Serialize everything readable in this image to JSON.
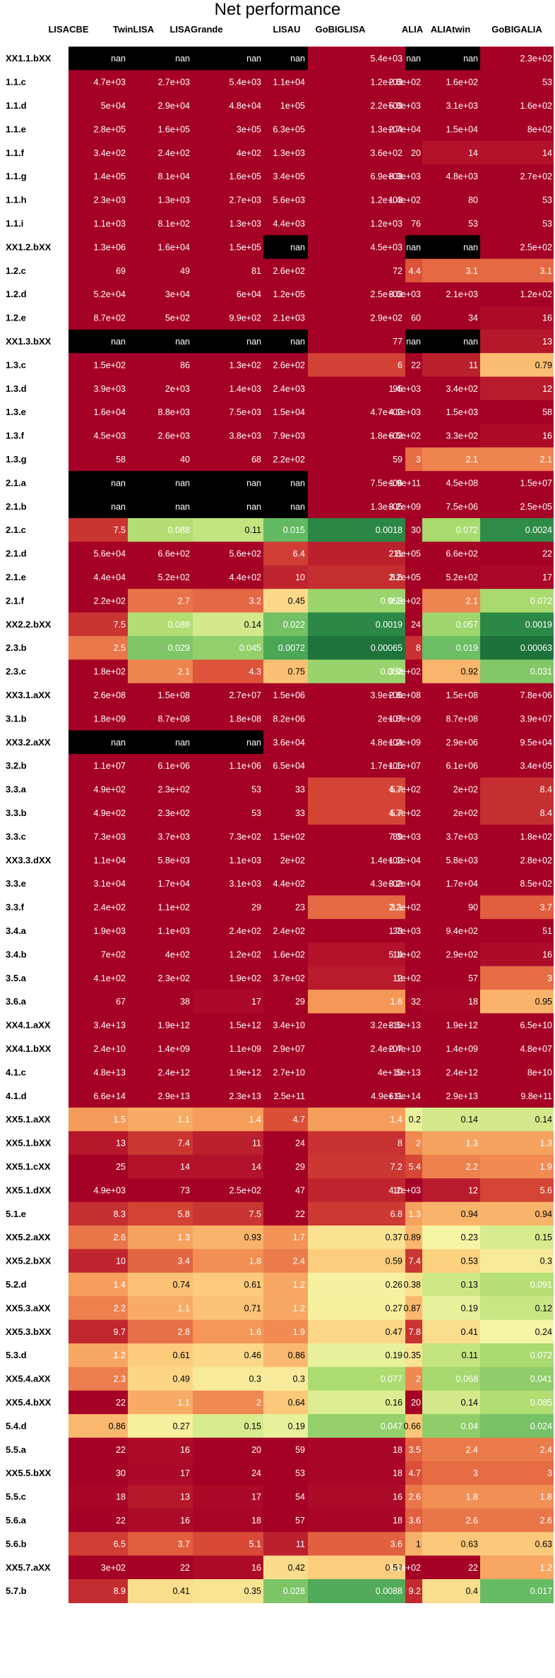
{
  "chart_data": {
    "type": "heatmap",
    "title": "Net performance",
    "columns": [
      "LISACBE",
      "TwinLISA",
      "LISAGrande",
      "LISAU",
      "GoBIGLISA",
      "ALIA",
      "ALIAtwin",
      "GoBIGALIA"
    ],
    "colors": {
      "nan": "#000000",
      "high": "#a50026",
      "low": "#1a6e38",
      "text_light": "#ffffff",
      "text_dark": "#000000"
    },
    "scale": {
      "log": true,
      "min": 0.0005,
      "max": 20,
      "midpoint": 1
    },
    "rows": [
      {
        "label": "XX1.1.bXX",
        "values": [
          "nan",
          "nan",
          "nan",
          "nan",
          "5.4e+03",
          "nan",
          "nan",
          "2.3e+02"
        ]
      },
      {
        "label": "1.1.c",
        "values": [
          "4.7e+03",
          "2.7e+03",
          "5.4e+03",
          "1.1e+04",
          "1.2e+03",
          "2.8e+02",
          "1.6e+02",
          "53"
        ]
      },
      {
        "label": "1.1.d",
        "values": [
          "5e+04",
          "2.9e+04",
          "4.8e+04",
          "1e+05",
          "2.2e+03",
          "5.8e+03",
          "3.1e+03",
          "1.6e+02"
        ]
      },
      {
        "label": "1.1.e",
        "values": [
          "2.8e+05",
          "1.6e+05",
          "3e+05",
          "6.3e+05",
          "1.3e+04",
          "2.7e+04",
          "1.5e+04",
          "8e+02"
        ]
      },
      {
        "label": "1.1.f",
        "values": [
          "3.4e+02",
          "2.4e+02",
          "4e+02",
          "1.3e+03",
          "3.6e+02",
          "20",
          "14",
          "14"
        ]
      },
      {
        "label": "1.1.g",
        "values": [
          "1.4e+05",
          "8.1e+04",
          "1.6e+05",
          "3.4e+05",
          "6.9e+03",
          "8.3e+03",
          "4.8e+03",
          "2.7e+02"
        ]
      },
      {
        "label": "1.1.h",
        "values": [
          "2.3e+03",
          "1.3e+03",
          "2.7e+03",
          "5.6e+03",
          "1.2e+03",
          "1.4e+02",
          "80",
          "53"
        ]
      },
      {
        "label": "1.1.i",
        "values": [
          "1.1e+03",
          "8.1e+02",
          "1.3e+03",
          "4.4e+03",
          "1.2e+03",
          "76",
          "53",
          "53"
        ]
      },
      {
        "label": "XX1.2.bXX",
        "values": [
          "1.3e+06",
          "1.6e+04",
          "1.5e+05",
          "nan",
          "4.5e+03",
          "nan",
          "nan",
          "2.5e+02"
        ]
      },
      {
        "label": "1.2.c",
        "values": [
          "69",
          "49",
          "81",
          "2.6e+02",
          "72",
          "4.4",
          "3.1",
          "3.1"
        ]
      },
      {
        "label": "1.2.d",
        "values": [
          "5.2e+04",
          "3e+04",
          "6e+04",
          "1.2e+05",
          "2.5e+03",
          "3.6e+03",
          "2.1e+03",
          "1.2e+02"
        ]
      },
      {
        "label": "1.2.e",
        "values": [
          "8.7e+02",
          "5e+02",
          "9.9e+02",
          "2.1e+03",
          "2.9e+02",
          "60",
          "34",
          "16"
        ]
      },
      {
        "label": "XX1.3.bXX",
        "values": [
          "nan",
          "nan",
          "nan",
          "nan",
          "77",
          "nan",
          "nan",
          "13"
        ]
      },
      {
        "label": "1.3.c",
        "values": [
          "1.5e+02",
          "86",
          "1.3e+02",
          "2.6e+02",
          "6",
          "22",
          "11",
          "0.79"
        ]
      },
      {
        "label": "1.3.d",
        "values": [
          "3.9e+03",
          "2e+03",
          "1.4e+03",
          "2.4e+03",
          "95",
          "1.4e+03",
          "3.4e+02",
          "12"
        ]
      },
      {
        "label": "1.3.e",
        "values": [
          "1.6e+04",
          "8.8e+03",
          "7.5e+03",
          "1.5e+04",
          "4.7e+02",
          "4.1e+03",
          "1.5e+03",
          "58"
        ]
      },
      {
        "label": "1.3.f",
        "values": [
          "4.5e+03",
          "2.6e+03",
          "3.8e+03",
          "7.9e+03",
          "1.8e+02",
          "6.5e+02",
          "3.3e+02",
          "16"
        ]
      },
      {
        "label": "1.3.g",
        "values": [
          "58",
          "40",
          "68",
          "2.2e+02",
          "59",
          "3",
          "2.1",
          "2.1"
        ]
      },
      {
        "label": "2.1.a",
        "values": [
          "nan",
          "nan",
          "nan",
          "nan",
          "7.5e+06",
          "1.9e+11",
          "4.5e+08",
          "1.5e+07"
        ]
      },
      {
        "label": "2.1.b",
        "values": [
          "nan",
          "nan",
          "nan",
          "nan",
          "1.3e+05",
          "3.2e+09",
          "7.5e+06",
          "2.5e+05"
        ]
      },
      {
        "label": "2.1.c",
        "values": [
          "7.5",
          "0.088",
          "0.11",
          "0.015",
          "0.0018",
          "30",
          "0.072",
          "0.0024"
        ]
      },
      {
        "label": "2.1.d",
        "values": [
          "5.6e+04",
          "6.6e+02",
          "5.6e+02",
          "6.4",
          "11",
          "2.8e+05",
          "6.6e+02",
          "22"
        ]
      },
      {
        "label": "2.1.e",
        "values": [
          "4.4e+04",
          "5.2e+02",
          "4.4e+02",
          "10",
          "8.6",
          "2.2e+05",
          "5.2e+02",
          "17"
        ]
      },
      {
        "label": "2.1.f",
        "values": [
          "2.2e+02",
          "2.7",
          "3.2",
          "0.45",
          "0.053",
          "9.1e+02",
          "2.1",
          "0.072"
        ]
      },
      {
        "label": "XX2.2.bXX",
        "values": [
          "7.5",
          "0.088",
          "0.14",
          "0.022",
          "0.0019",
          "24",
          "0.057",
          "0.0019"
        ]
      },
      {
        "label": "2.3.b",
        "values": [
          "2.5",
          "0.029",
          "0.045",
          "0.0072",
          "0.00065",
          "8",
          "0.019",
          "0.00063"
        ]
      },
      {
        "label": "2.3.c",
        "values": [
          "1.8e+02",
          "2.1",
          "4.3",
          "0.75",
          "0.052",
          "3.9e+02",
          "0.92",
          "0.031"
        ]
      },
      {
        "label": "XX3.1.aXX",
        "values": [
          "2.6e+08",
          "1.5e+08",
          "2.7e+07",
          "1.5e+06",
          "3.9e+06",
          "2.8e+08",
          "1.5e+08",
          "7.8e+06"
        ]
      },
      {
        "label": "3.1.b",
        "values": [
          "1.8e+09",
          "8.7e+08",
          "1.8e+08",
          "8.2e+06",
          "2e+07",
          "1.8e+09",
          "8.7e+08",
          "3.9e+07"
        ]
      },
      {
        "label": "XX3.2.aXX",
        "values": [
          "nan",
          "nan",
          "nan",
          "3.6e+04",
          "4.8e+04",
          "1.2e+09",
          "2.9e+06",
          "9.5e+04"
        ]
      },
      {
        "label": "3.2.b",
        "values": [
          "1.1e+07",
          "6.1e+06",
          "1.1e+06",
          "6.5e+04",
          "1.7e+05",
          "1.1e+07",
          "6.1e+06",
          "3.4e+05"
        ]
      },
      {
        "label": "3.3.a",
        "values": [
          "4.9e+02",
          "2.3e+02",
          "53",
          "33",
          "5.7",
          "4.7e+02",
          "2e+02",
          "8.4"
        ]
      },
      {
        "label": "3.3.b",
        "values": [
          "4.9e+02",
          "2.3e+02",
          "53",
          "33",
          "5.7",
          "4.7e+02",
          "2e+02",
          "8.4"
        ]
      },
      {
        "label": "3.3.c",
        "values": [
          "7.3e+03",
          "3.7e+03",
          "7.3e+02",
          "1.5e+02",
          "89",
          "7.3e+03",
          "3.7e+03",
          "1.8e+02"
        ]
      },
      {
        "label": "XX3.3.dXX",
        "values": [
          "1.1e+04",
          "5.8e+03",
          "1.1e+03",
          "2e+02",
          "1.4e+02",
          "1.1e+04",
          "5.8e+03",
          "2.8e+02"
        ]
      },
      {
        "label": "3.3.e",
        "values": [
          "3.1e+04",
          "1.7e+04",
          "3.1e+03",
          "4.4e+02",
          "4.3e+02",
          "3.2e+04",
          "1.7e+04",
          "8.5e+02"
        ]
      },
      {
        "label": "3.3.f",
        "values": [
          "2.4e+02",
          "1.1e+02",
          "29",
          "23",
          "3.1",
          "2.2e+02",
          "90",
          "3.7"
        ]
      },
      {
        "label": "3.4.a",
        "values": [
          "1.9e+03",
          "1.1e+03",
          "2.4e+02",
          "2.4e+02",
          "33",
          "1.7e+03",
          "9.4e+02",
          "51"
        ]
      },
      {
        "label": "3.4.b",
        "values": [
          "7e+02",
          "4e+02",
          "1.2e+02",
          "1.6e+02",
          "14",
          "5.1e+02",
          "2.9e+02",
          "16"
        ]
      },
      {
        "label": "3.5.a",
        "values": [
          "4.1e+02",
          "2.3e+02",
          "1.9e+02",
          "3.7e+02",
          "12",
          "1e+02",
          "57",
          "3"
        ]
      },
      {
        "label": "3.6.a",
        "values": [
          "67",
          "38",
          "17",
          "29",
          "1.6",
          "32",
          "18",
          "0.95"
        ]
      },
      {
        "label": "XX4.1.aXX",
        "values": [
          "3.4e+13",
          "1.9e+12",
          "1.5e+12",
          "3.4e+10",
          "3.2e+10",
          "3.5e+13",
          "1.9e+12",
          "6.5e+10"
        ]
      },
      {
        "label": "XX4.1.bXX",
        "values": [
          "2.4e+10",
          "1.4e+09",
          "1.1e+09",
          "2.9e+07",
          "2.4e+07",
          "2.4e+10",
          "1.4e+09",
          "4.8e+07"
        ]
      },
      {
        "label": "4.1.c",
        "values": [
          "4.8e+13",
          "2.4e+12",
          "1.9e+12",
          "2.7e+10",
          "4e+10",
          "5e+13",
          "2.4e+12",
          "8e+10"
        ]
      },
      {
        "label": "4.1.d",
        "values": [
          "6.6e+14",
          "2.9e+13",
          "2.3e+13",
          "2.5e+11",
          "4.9e+11",
          "6.9e+14",
          "2.9e+13",
          "9.8e+11"
        ]
      },
      {
        "label": "XX5.1.aXX",
        "values": [
          "1.5",
          "1.1",
          "1.4",
          "4.7",
          "1.4",
          "0.2",
          "0.14",
          "0.14"
        ]
      },
      {
        "label": "XX5.1.bXX",
        "values": [
          "13",
          "7.4",
          "11",
          "24",
          "8",
          "2",
          "1.3",
          "1.3"
        ]
      },
      {
        "label": "XX5.1.cXX",
        "values": [
          "25",
          "14",
          "14",
          "29",
          "7.2",
          "5.4",
          "2.2",
          "1.9"
        ]
      },
      {
        "label": "XX5.1.dXX",
        "values": [
          "4.9e+03",
          "73",
          "2.5e+02",
          "47",
          "10",
          "4.2e+03",
          "12",
          "5.6"
        ]
      },
      {
        "label": "5.1.e",
        "values": [
          "8.3",
          "5.8",
          "7.5",
          "22",
          "6.8",
          "1.3",
          "0.94",
          "0.94"
        ]
      },
      {
        "label": "XX5.2.aXX",
        "values": [
          "2.6",
          "1.3",
          "0.93",
          "1.7",
          "0.37",
          "0.89",
          "0.23",
          "0.15"
        ]
      },
      {
        "label": "XX5.2.bXX",
        "values": [
          "10",
          "3.4",
          "1.8",
          "2.4",
          "0.59",
          "7.4",
          "0.53",
          "0.3"
        ]
      },
      {
        "label": "5.2.d",
        "values": [
          "1.4",
          "0.74",
          "0.61",
          "1.2",
          "0.26",
          "0.38",
          "0.13",
          "0.091"
        ]
      },
      {
        "label": "XX5.3.aXX",
        "values": [
          "2.2",
          "1.1",
          "0.71",
          "1.2",
          "0.27",
          "0.87",
          "0.19",
          "0.12"
        ]
      },
      {
        "label": "XX5.3.bXX",
        "values": [
          "9.7",
          "2.8",
          "1.6",
          "1.9",
          "0.47",
          "7.8",
          "0.41",
          "0.24"
        ]
      },
      {
        "label": "5.3.d",
        "values": [
          "1.2",
          "0.61",
          "0.46",
          "0.86",
          "0.19",
          "0.35",
          "0.11",
          "0.072"
        ]
      },
      {
        "label": "XX5.4.aXX",
        "values": [
          "2.3",
          "0.49",
          "0.3",
          "0.3",
          "0.077",
          "2",
          "0.068",
          "0.041"
        ]
      },
      {
        "label": "XX5.4.bXX",
        "values": [
          "22",
          "1.1",
          "2",
          "0.64",
          "0.16",
          "20",
          "0.14",
          "0.085"
        ]
      },
      {
        "label": "5.4.d",
        "values": [
          "0.86",
          "0.27",
          "0.15",
          "0.19",
          "0.047",
          "0.66",
          "0.04",
          "0.024"
        ]
      },
      {
        "label": "5.5.a",
        "values": [
          "22",
          "16",
          "20",
          "59",
          "18",
          "3.5",
          "2.4",
          "2.4"
        ]
      },
      {
        "label": "XX5.5.bXX",
        "values": [
          "30",
          "17",
          "24",
          "53",
          "18",
          "4.7",
          "3",
          "3"
        ]
      },
      {
        "label": "5.5.c",
        "values": [
          "18",
          "13",
          "17",
          "54",
          "16",
          "2.6",
          "1.8",
          "1.8"
        ]
      },
      {
        "label": "5.6.a",
        "values": [
          "22",
          "16",
          "18",
          "57",
          "18",
          "3.6",
          "2.6",
          "2.6"
        ]
      },
      {
        "label": "5.6.b",
        "values": [
          "6.5",
          "3.7",
          "5.1",
          "11",
          "3.6",
          "1",
          "0.63",
          "0.63"
        ]
      },
      {
        "label": "XX5.7.aXX",
        "values": [
          "3e+02",
          "22",
          "16",
          "0.42",
          "0.59",
          "3.1e+02",
          "22",
          "1.2"
        ]
      },
      {
        "label": "5.7.b",
        "values": [
          "8.9",
          "0.41",
          "0.35",
          "0.028",
          "0.0088",
          "9.2",
          "0.4",
          "0.017"
        ]
      }
    ]
  }
}
